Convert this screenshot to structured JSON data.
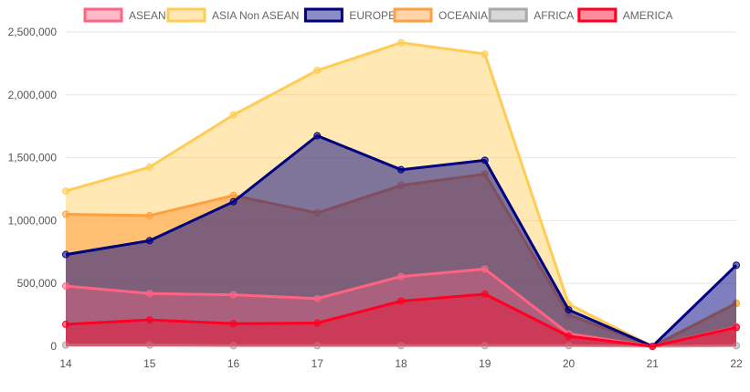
{
  "chart_data": {
    "type": "area",
    "stacked": false,
    "title": "",
    "xlabel": "",
    "ylabel": "",
    "x": [
      "14",
      "15",
      "16",
      "17",
      "18",
      "19",
      "20",
      "21",
      "22"
    ],
    "ylim": [
      0,
      2500000
    ],
    "yticks": [
      0,
      500000,
      1000000,
      1500000,
      2000000,
      2500000
    ],
    "ytick_labels": [
      "0",
      "500,000",
      "1,000,000",
      "1,500,000",
      "2,000,000",
      "2,500,000"
    ],
    "grid": true,
    "legend_position": "top",
    "series": [
      {
        "name": "ASEAN",
        "color": "#ff6384",
        "fill": "#ff6384",
        "fill_opacity": 0.35,
        "values": [
          480000,
          420000,
          410000,
          380000,
          555000,
          615000,
          100000,
          0,
          155000
        ]
      },
      {
        "name": "ASIA Non ASEAN",
        "color": "#ffcd56",
        "fill": "#ffcd56",
        "fill_opacity": 0.45,
        "values": [
          1235000,
          1425000,
          1840000,
          2195000,
          2415000,
          2325000,
          335000,
          0,
          345000
        ]
      },
      {
        "name": "EUROPE",
        "color": "#000080",
        "fill": "#000080",
        "fill_opacity": 0.5,
        "values": [
          730000,
          840000,
          1150000,
          1675000,
          1405000,
          1480000,
          290000,
          0,
          645000
        ]
      },
      {
        "name": "OCEANIA",
        "color": "#ff9f40",
        "fill": "#ff9f40",
        "fill_opacity": 0.55,
        "values": [
          1050000,
          1040000,
          1200000,
          1060000,
          1280000,
          1370000,
          250000,
          0,
          340000
        ]
      },
      {
        "name": "AFRICA",
        "color": "#a9a9a9",
        "fill": "#a9a9a9",
        "fill_opacity": 0.5,
        "values": [
          10000,
          10000,
          5000,
          5000,
          5000,
          5000,
          5000,
          0,
          5000
        ]
      },
      {
        "name": "AMERICA",
        "color": "#ff0022",
        "fill": "#ff0022",
        "fill_opacity": 0.4,
        "values": [
          175000,
          210000,
          180000,
          185000,
          360000,
          415000,
          80000,
          0,
          150000
        ]
      }
    ],
    "draw_order": [
      "ASIA Non ASEAN",
      "OCEANIA",
      "EUROPE",
      "ASEAN",
      "AFRICA",
      "AMERICA"
    ]
  }
}
